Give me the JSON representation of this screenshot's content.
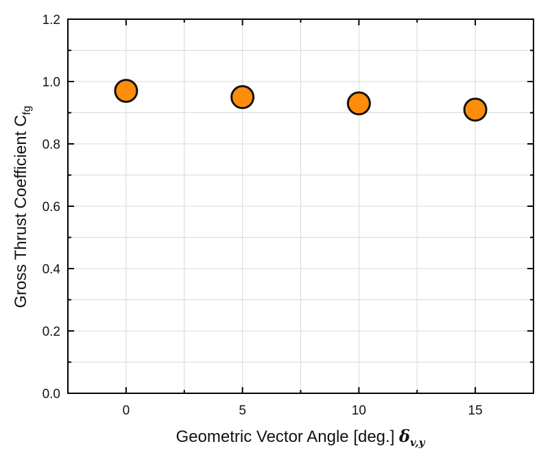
{
  "chart_data": {
    "type": "scatter",
    "x": [
      0,
      5,
      10,
      15
    ],
    "values": [
      0.97,
      0.95,
      0.93,
      0.91
    ],
    "xticks": [
      "0",
      "5",
      "10",
      "15"
    ],
    "yticks": [
      "0.0",
      "0.2",
      "0.4",
      "0.6",
      "0.8",
      "1.0",
      "1.2"
    ],
    "xlim": [
      -2.5,
      17.5
    ],
    "ylim": [
      0,
      1.2
    ],
    "xlabel": {
      "text": "Geometric Vector Angle [deg.] ",
      "symbol": "δ",
      "symbol_sub": "v,y"
    },
    "ylabel": {
      "text": "Gross Thrust Coefficient C",
      "sub": "fg"
    },
    "grid": true,
    "marker_color": "#ff8c0a",
    "marker_edge_color": "#111111"
  }
}
